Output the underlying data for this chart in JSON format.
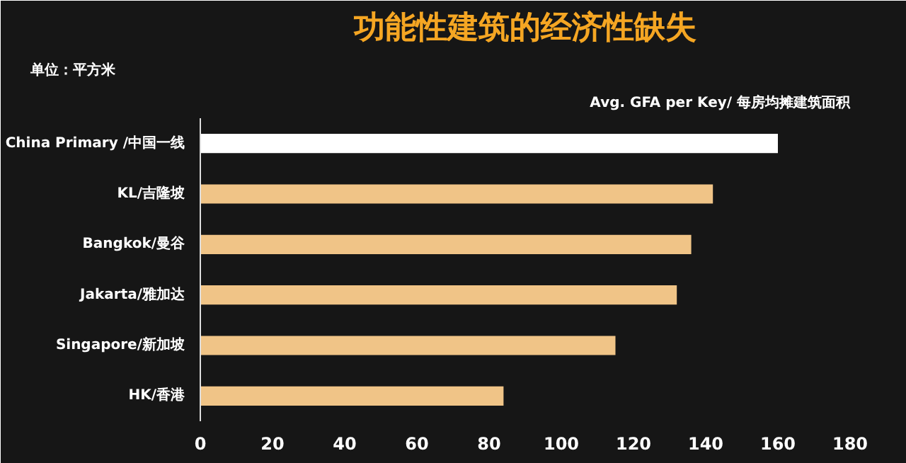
{
  "chart_data": {
    "type": "bar",
    "orientation": "horizontal",
    "title": "功能性建筑的经济性缺失",
    "categories": [
      "China Primary /中国一线",
      "KL/吉隆坡",
      "Bangkok/曼谷",
      "Jakarta/雅加达",
      "Singapore/新加坡",
      "HK/香港"
    ],
    "values": [
      160,
      142,
      136,
      132,
      115,
      84
    ],
    "colors": [
      "#ffffff",
      "#f0c487",
      "#f0c487",
      "#f0c487",
      "#f0c487",
      "#f0c487"
    ],
    "xlim": [
      0,
      180
    ],
    "xticks": [
      0,
      20,
      40,
      60,
      80,
      100,
      120,
      140,
      160,
      180
    ],
    "grid": false,
    "annotations": [
      "单位：平方米",
      "Avg. GFA per Key/ 每房均摊建筑面积"
    ]
  }
}
